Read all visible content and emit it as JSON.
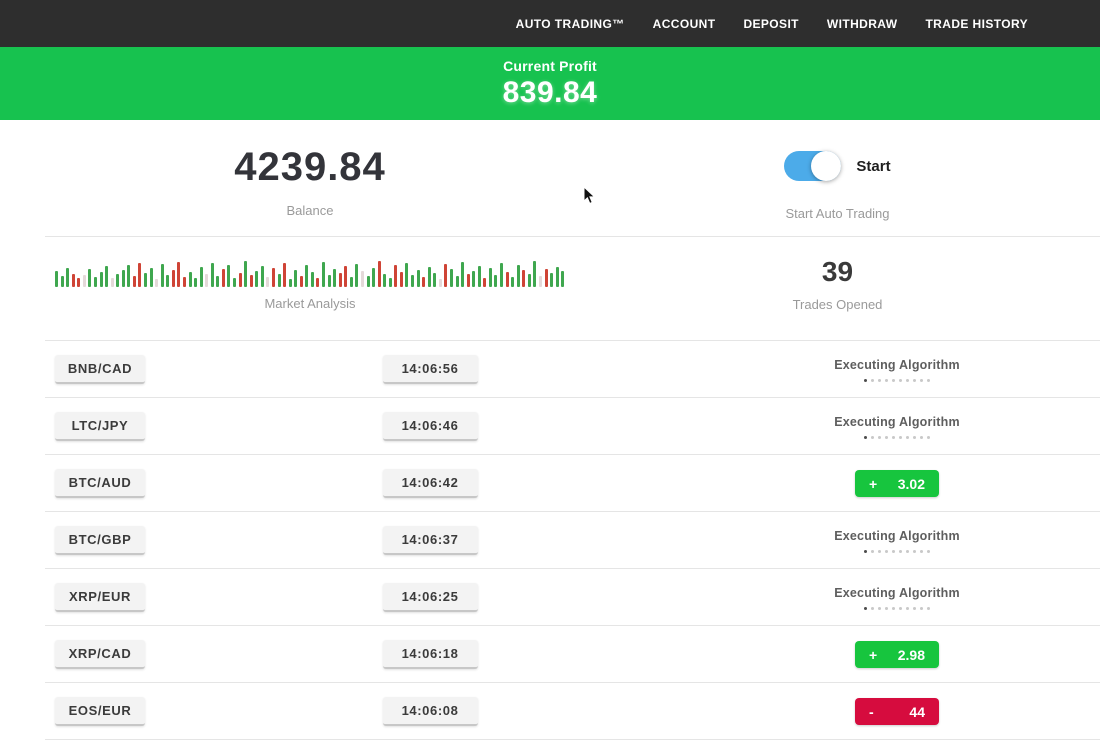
{
  "nav": {
    "items": [
      {
        "label": "AUTO TRADING™"
      },
      {
        "label": "ACCOUNT"
      },
      {
        "label": "DEPOSIT"
      },
      {
        "label": "WITHDRAW"
      },
      {
        "label": "TRADE HISTORY"
      }
    ]
  },
  "profit_banner": {
    "label": "Current Profit",
    "value": "839.84"
  },
  "stats": {
    "balance": {
      "value": "4239.84",
      "label": "Balance"
    },
    "auto_trading": {
      "toggle_label": "Start",
      "label": "Start Auto Trading",
      "enabled": true
    },
    "market_analysis": {
      "label": "Market Analysis"
    },
    "trades_opened": {
      "value": "39",
      "label": "Trades Opened"
    }
  },
  "chart_data": {
    "type": "bar",
    "title": "Market Analysis",
    "xlabel": "",
    "ylabel": "",
    "legend": false,
    "grid": false,
    "note": "decorative candlestick-style volume bars, bottom-aligned, heights in px",
    "colors": {
      "g": "#3fa74f",
      "r": "#cf4436",
      "p": "#e4d9d9"
    },
    "bars": [
      [
        16,
        "g"
      ],
      [
        11,
        "g"
      ],
      [
        19,
        "g"
      ],
      [
        13,
        "r"
      ],
      [
        9,
        "r"
      ],
      [
        12,
        "p"
      ],
      [
        18,
        "g"
      ],
      [
        10,
        "g"
      ],
      [
        15,
        "g"
      ],
      [
        21,
        "g"
      ],
      [
        9,
        "p"
      ],
      [
        13,
        "g"
      ],
      [
        17,
        "g"
      ],
      [
        22,
        "g"
      ],
      [
        11,
        "r"
      ],
      [
        24,
        "r"
      ],
      [
        14,
        "g"
      ],
      [
        19,
        "g"
      ],
      [
        8,
        "p"
      ],
      [
        23,
        "g"
      ],
      [
        12,
        "g"
      ],
      [
        17,
        "r"
      ],
      [
        25,
        "r"
      ],
      [
        10,
        "r"
      ],
      [
        15,
        "g"
      ],
      [
        9,
        "g"
      ],
      [
        20,
        "g"
      ],
      [
        13,
        "p"
      ],
      [
        24,
        "g"
      ],
      [
        11,
        "g"
      ],
      [
        18,
        "r"
      ],
      [
        22,
        "g"
      ],
      [
        9,
        "g"
      ],
      [
        14,
        "r"
      ],
      [
        26,
        "g"
      ],
      [
        12,
        "r"
      ],
      [
        16,
        "g"
      ],
      [
        21,
        "g"
      ],
      [
        10,
        "p"
      ],
      [
        19,
        "r"
      ],
      [
        13,
        "g"
      ],
      [
        24,
        "r"
      ],
      [
        8,
        "g"
      ],
      [
        17,
        "g"
      ],
      [
        11,
        "r"
      ],
      [
        22,
        "g"
      ],
      [
        15,
        "g"
      ],
      [
        9,
        "r"
      ],
      [
        25,
        "g"
      ],
      [
        12,
        "g"
      ],
      [
        18,
        "g"
      ],
      [
        14,
        "r"
      ],
      [
        21,
        "r"
      ],
      [
        10,
        "g"
      ],
      [
        23,
        "g"
      ],
      [
        16,
        "p"
      ],
      [
        11,
        "g"
      ],
      [
        19,
        "g"
      ],
      [
        26,
        "r"
      ],
      [
        13,
        "g"
      ],
      [
        9,
        "g"
      ],
      [
        22,
        "r"
      ],
      [
        15,
        "r"
      ],
      [
        24,
        "g"
      ],
      [
        12,
        "g"
      ],
      [
        17,
        "g"
      ],
      [
        10,
        "r"
      ],
      [
        20,
        "g"
      ],
      [
        14,
        "g"
      ],
      [
        8,
        "p"
      ],
      [
        23,
        "r"
      ],
      [
        18,
        "g"
      ],
      [
        11,
        "g"
      ],
      [
        25,
        "g"
      ],
      [
        13,
        "r"
      ],
      [
        16,
        "g"
      ],
      [
        21,
        "g"
      ],
      [
        9,
        "r"
      ],
      [
        19,
        "g"
      ],
      [
        12,
        "g"
      ],
      [
        24,
        "g"
      ],
      [
        15,
        "r"
      ],
      [
        10,
        "g"
      ],
      [
        22,
        "g"
      ],
      [
        17,
        "r"
      ],
      [
        13,
        "g"
      ],
      [
        26,
        "g"
      ],
      [
        11,
        "p"
      ],
      [
        18,
        "r"
      ],
      [
        14,
        "g"
      ],
      [
        20,
        "g"
      ],
      [
        16,
        "g"
      ]
    ]
  },
  "trades": [
    {
      "pair": "BNB/CAD",
      "time": "14:06:56",
      "status": {
        "type": "executing",
        "label": "Executing Algorithm",
        "dots": 10
      }
    },
    {
      "pair": "LTC/JPY",
      "time": "14:06:46",
      "status": {
        "type": "executing",
        "label": "Executing Algorithm",
        "dots": 10
      }
    },
    {
      "pair": "BTC/AUD",
      "time": "14:06:42",
      "status": {
        "type": "profit",
        "sign": "+",
        "value": "3.02"
      }
    },
    {
      "pair": "BTC/GBP",
      "time": "14:06:37",
      "status": {
        "type": "executing",
        "label": "Executing Algorithm",
        "dots": 10
      }
    },
    {
      "pair": "XRP/EUR",
      "time": "14:06:25",
      "status": {
        "type": "executing",
        "label": "Executing Algorithm",
        "dots": 10
      }
    },
    {
      "pair": "XRP/CAD",
      "time": "14:06:18",
      "status": {
        "type": "profit",
        "sign": "+",
        "value": "2.98"
      }
    },
    {
      "pair": "EOS/EUR",
      "time": "14:06:08",
      "status": {
        "type": "loss",
        "sign": "-",
        "value": "44"
      }
    }
  ],
  "colors": {
    "topbar": "#2e2e2e",
    "banner_green": "#17c24f",
    "profit_green": "#17c53e",
    "loss_red": "#d60c3e",
    "toggle_blue": "#4cabe9"
  }
}
